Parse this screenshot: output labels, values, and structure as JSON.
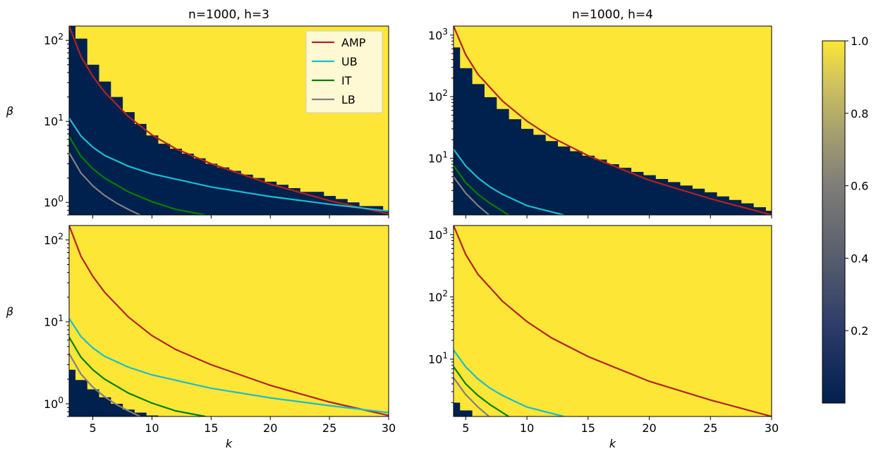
{
  "figure": {
    "panel_titles": [
      "n=1000, h=3",
      "n=1000, h=4"
    ],
    "ylabel": "β",
    "xlabel": "k",
    "legend": [
      "AMP",
      "UB",
      "IT",
      "LB"
    ],
    "colorbar": {
      "ticks": [
        0.2,
        0.4,
        0.6,
        0.8,
        1.0
      ],
      "range": [
        0.0,
        1.0
      ],
      "colormap": "cividis"
    },
    "colors": {
      "AMP": "#b22222",
      "UB": "#17becf",
      "IT": "#008000",
      "LB": "#808080",
      "high": "#fde636",
      "low": "#00204d",
      "mid": "#7b7a77"
    }
  },
  "chart_data": [
    {
      "type": "heatmap",
      "panel": "top-left",
      "title": "n=1000, h=3",
      "ylabel": "β",
      "xlabel": "",
      "xlim": [
        3,
        30
      ],
      "ylim": [
        0.7,
        150
      ],
      "yscale": "log",
      "xticks": [],
      "yticks": [
        1,
        10,
        100
      ],
      "k": [
        3,
        4,
        5,
        6,
        7,
        8,
        9,
        10,
        11,
        12,
        13,
        14,
        15,
        16,
        17,
        18,
        19,
        20,
        21,
        22,
        23,
        24,
        25,
        26,
        27,
        28,
        29,
        30
      ],
      "boundary_beta": [
        150,
        105,
        50,
        31,
        20,
        13,
        9.3,
        6.7,
        5.3,
        4.6,
        4.0,
        3.5,
        3.0,
        2.7,
        2.45,
        2.2,
        2.0,
        1.8,
        1.65,
        1.5,
        1.35,
        1.35,
        1.2,
        1.1,
        1.0,
        0.9,
        0.9,
        0.8
      ],
      "legend": [
        "AMP",
        "UB",
        "IT",
        "LB"
      ],
      "legend_position": "upper right",
      "series": [
        {
          "name": "AMP",
          "x": [
            3,
            4,
            5,
            6,
            8,
            10,
            12,
            15,
            20,
            25,
            30
          ],
          "y": [
            150,
            63,
            36,
            23,
            11.5,
            6.8,
            4.6,
            3.0,
            1.68,
            1.05,
            0.72
          ]
        },
        {
          "name": "UB",
          "x": [
            3,
            4,
            5,
            6,
            8,
            10,
            15,
            20,
            25,
            30
          ],
          "y": [
            11,
            6.6,
            4.8,
            3.8,
            2.8,
            2.25,
            1.55,
            1.18,
            0.95,
            0.78
          ]
        },
        {
          "name": "IT",
          "x": [
            3,
            4,
            5,
            6,
            8,
            10,
            12,
            14.5
          ],
          "y": [
            6.5,
            3.7,
            2.6,
            2.0,
            1.35,
            1.02,
            0.82,
            0.7
          ]
        },
        {
          "name": "LB",
          "x": [
            3,
            4,
            5,
            6,
            7,
            8,
            9
          ],
          "y": [
            4.1,
            2.3,
            1.6,
            1.22,
            0.98,
            0.82,
            0.7
          ]
        }
      ]
    },
    {
      "type": "heatmap",
      "panel": "top-right",
      "title": "n=1000, h=4",
      "ylabel": "",
      "xlabel": "",
      "xlim": [
        4,
        30
      ],
      "ylim": [
        1.2,
        1400
      ],
      "yscale": "log",
      "xticks": [],
      "yticks": [
        10,
        100,
        1000
      ],
      "k": [
        4,
        5,
        6,
        7,
        8,
        9,
        10,
        11,
        12,
        13,
        14,
        15,
        16,
        17,
        18,
        19,
        20,
        21,
        22,
        23,
        24,
        25,
        26,
        27,
        28,
        29,
        30
      ],
      "boundary_beta": [
        630,
        290,
        160,
        98,
        63,
        43,
        30,
        24,
        19,
        15.5,
        13,
        11,
        9.5,
        8,
        7,
        6,
        5.3,
        4.6,
        4.1,
        3.6,
        3.2,
        2.8,
        2.4,
        2.1,
        1.85,
        1.6,
        1.4
      ],
      "series": [
        {
          "name": "AMP",
          "x": [
            4,
            5,
            6,
            8,
            10,
            12,
            15,
            20,
            25,
            30
          ],
          "y": [
            1400,
            480,
            230,
            85,
            40,
            22,
            11,
            4.4,
            2.2,
            1.2
          ]
        },
        {
          "name": "UB",
          "x": [
            4,
            5,
            6,
            7,
            8,
            10,
            13
          ],
          "y": [
            14,
            7.5,
            4.8,
            3.4,
            2.6,
            1.7,
            1.2
          ]
        },
        {
          "name": "IT",
          "x": [
            4,
            5,
            6,
            7,
            8.5
          ],
          "y": [
            7.6,
            4.0,
            2.6,
            1.85,
            1.2
          ]
        },
        {
          "name": "LB",
          "x": [
            4,
            5,
            6,
            6.9
          ],
          "y": [
            5.0,
            2.7,
            1.7,
            1.2
          ]
        }
      ]
    },
    {
      "type": "heatmap",
      "panel": "bottom-left",
      "title": "",
      "ylabel": "β",
      "xlabel": "k",
      "xlim": [
        3,
        30
      ],
      "ylim": [
        0.7,
        150
      ],
      "yscale": "log",
      "xticks": [
        5,
        10,
        15,
        20,
        25,
        30
      ],
      "yticks": [
        1,
        10,
        100
      ],
      "k": [
        3,
        4,
        5,
        6,
        7,
        8,
        9,
        10,
        11
      ],
      "boundary_beta": [
        2.6,
        1.95,
        1.5,
        1.2,
        1.0,
        0.85,
        0.78,
        0.72,
        0.7
      ],
      "series": [
        {
          "name": "AMP",
          "x": [
            3,
            4,
            5,
            6,
            8,
            10,
            12,
            15,
            20,
            25,
            30
          ],
          "y": [
            150,
            63,
            36,
            23,
            11.5,
            6.8,
            4.6,
            3.0,
            1.68,
            1.05,
            0.72
          ]
        },
        {
          "name": "UB",
          "x": [
            3,
            4,
            5,
            6,
            8,
            10,
            15,
            20,
            25,
            30
          ],
          "y": [
            11,
            6.6,
            4.8,
            3.8,
            2.8,
            2.25,
            1.55,
            1.18,
            0.95,
            0.78
          ]
        },
        {
          "name": "IT",
          "x": [
            3,
            4,
            5,
            6,
            8,
            10,
            12,
            14.5
          ],
          "y": [
            6.5,
            3.7,
            2.6,
            2.0,
            1.35,
            1.02,
            0.82,
            0.7
          ]
        },
        {
          "name": "LB",
          "x": [
            3,
            4,
            5,
            6,
            7,
            8,
            9
          ],
          "y": [
            4.1,
            2.3,
            1.6,
            1.22,
            0.98,
            0.82,
            0.7
          ]
        }
      ]
    },
    {
      "type": "heatmap",
      "panel": "bottom-right",
      "title": "",
      "ylabel": "",
      "xlabel": "k",
      "xlim": [
        4,
        30
      ],
      "ylim": [
        1.2,
        1400
      ],
      "yscale": "log",
      "xticks": [
        5,
        10,
        15,
        20,
        25,
        30
      ],
      "yticks": [
        10,
        100,
        1000
      ],
      "k": [
        4,
        5,
        6
      ],
      "boundary_beta": [
        2.0,
        1.5,
        1.2
      ],
      "series": [
        {
          "name": "AMP",
          "x": [
            4,
            5,
            6,
            8,
            10,
            12,
            15,
            20,
            25,
            30
          ],
          "y": [
            1400,
            480,
            230,
            85,
            40,
            22,
            11,
            4.4,
            2.2,
            1.2
          ]
        },
        {
          "name": "UB",
          "x": [
            4,
            5,
            6,
            7,
            8,
            10,
            13
          ],
          "y": [
            14,
            7.5,
            4.8,
            3.4,
            2.6,
            1.7,
            1.2
          ]
        },
        {
          "name": "IT",
          "x": [
            4,
            5,
            6,
            7,
            8.5
          ],
          "y": [
            7.6,
            4.0,
            2.6,
            1.85,
            1.2
          ]
        },
        {
          "name": "LB",
          "x": [
            4,
            5,
            6,
            6.9
          ],
          "y": [
            5.0,
            2.7,
            1.7,
            1.2
          ]
        }
      ]
    }
  ]
}
